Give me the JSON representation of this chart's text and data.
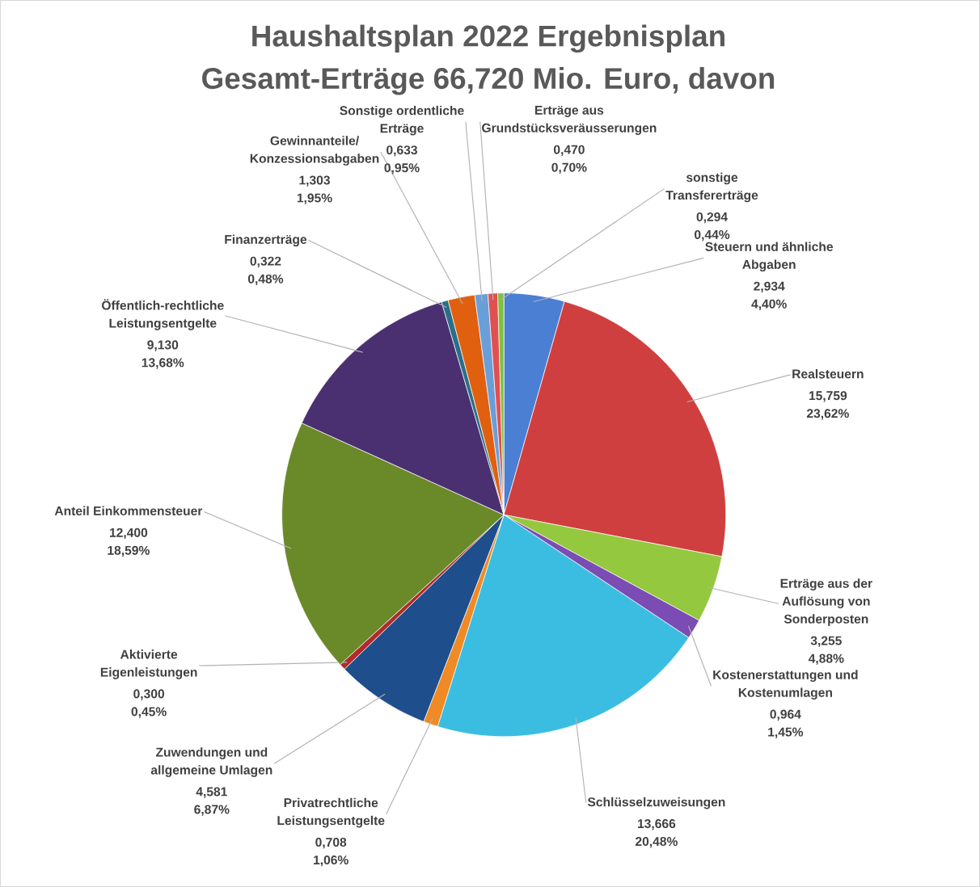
{
  "chart_data": {
    "type": "pie",
    "title": "Haushaltsplan 2022 Ergebnisplan",
    "subtitle": "Gesamt-Erträge  66,720 Mio. Euro, davon",
    "categories": [
      "Steuern und ähnliche Abgaben",
      "Realsteuern",
      "Erträge aus der Auflösung von Sonderposten",
      "Kostenerstattungen und Kostenumlagen",
      "Schlüsselzuweisungen",
      "Privatrechtliche Leistungsentgelte",
      "Zuwendungen und allgemeine Umlagen",
      "Aktivierte Eigenleistungen",
      "Anteil Einkommensteuer",
      "Öffentlich-rechtliche Leistungsentgelte",
      "Finanzerträge",
      "Gewinnanteile/ Konzessionsabgaben",
      "Sonstige ordentliche Erträge",
      "Erträge aus Grundstücksveräusserungen",
      "sonstige Transfererträge"
    ],
    "values": [
      2.934,
      15.759,
      3.255,
      0.964,
      13.666,
      0.708,
      4.581,
      0.3,
      12.4,
      9.13,
      0.322,
      1.303,
      0.633,
      0.47,
      0.294
    ],
    "value_labels": [
      "2,934 4,40%",
      "15,759 23,62%",
      "3,255 4,88%",
      "0,964 1,45%",
      "13,666 20,48%",
      "0,708 1,06%",
      "4,581 6,87%",
      "0,300 0,45%",
      "12,400 18,59%",
      "9,130 13,68%",
      "0,322 0,48%",
      "1,303 1,95%",
      "0,633 0,95%",
      "0,470 0,70%",
      "0,294 0,44%"
    ],
    "colors": [
      "#4a7fd4",
      "#cf3f3f",
      "#94c83e",
      "#7b4cb3",
      "#3bbde2",
      "#f08a24",
      "#1f4e8c",
      "#b02c2c",
      "#6a8a2a",
      "#4a3070",
      "#2a6f8a",
      "#e0600f",
      "#6a9ed8",
      "#e05050",
      "#80c040"
    ]
  }
}
